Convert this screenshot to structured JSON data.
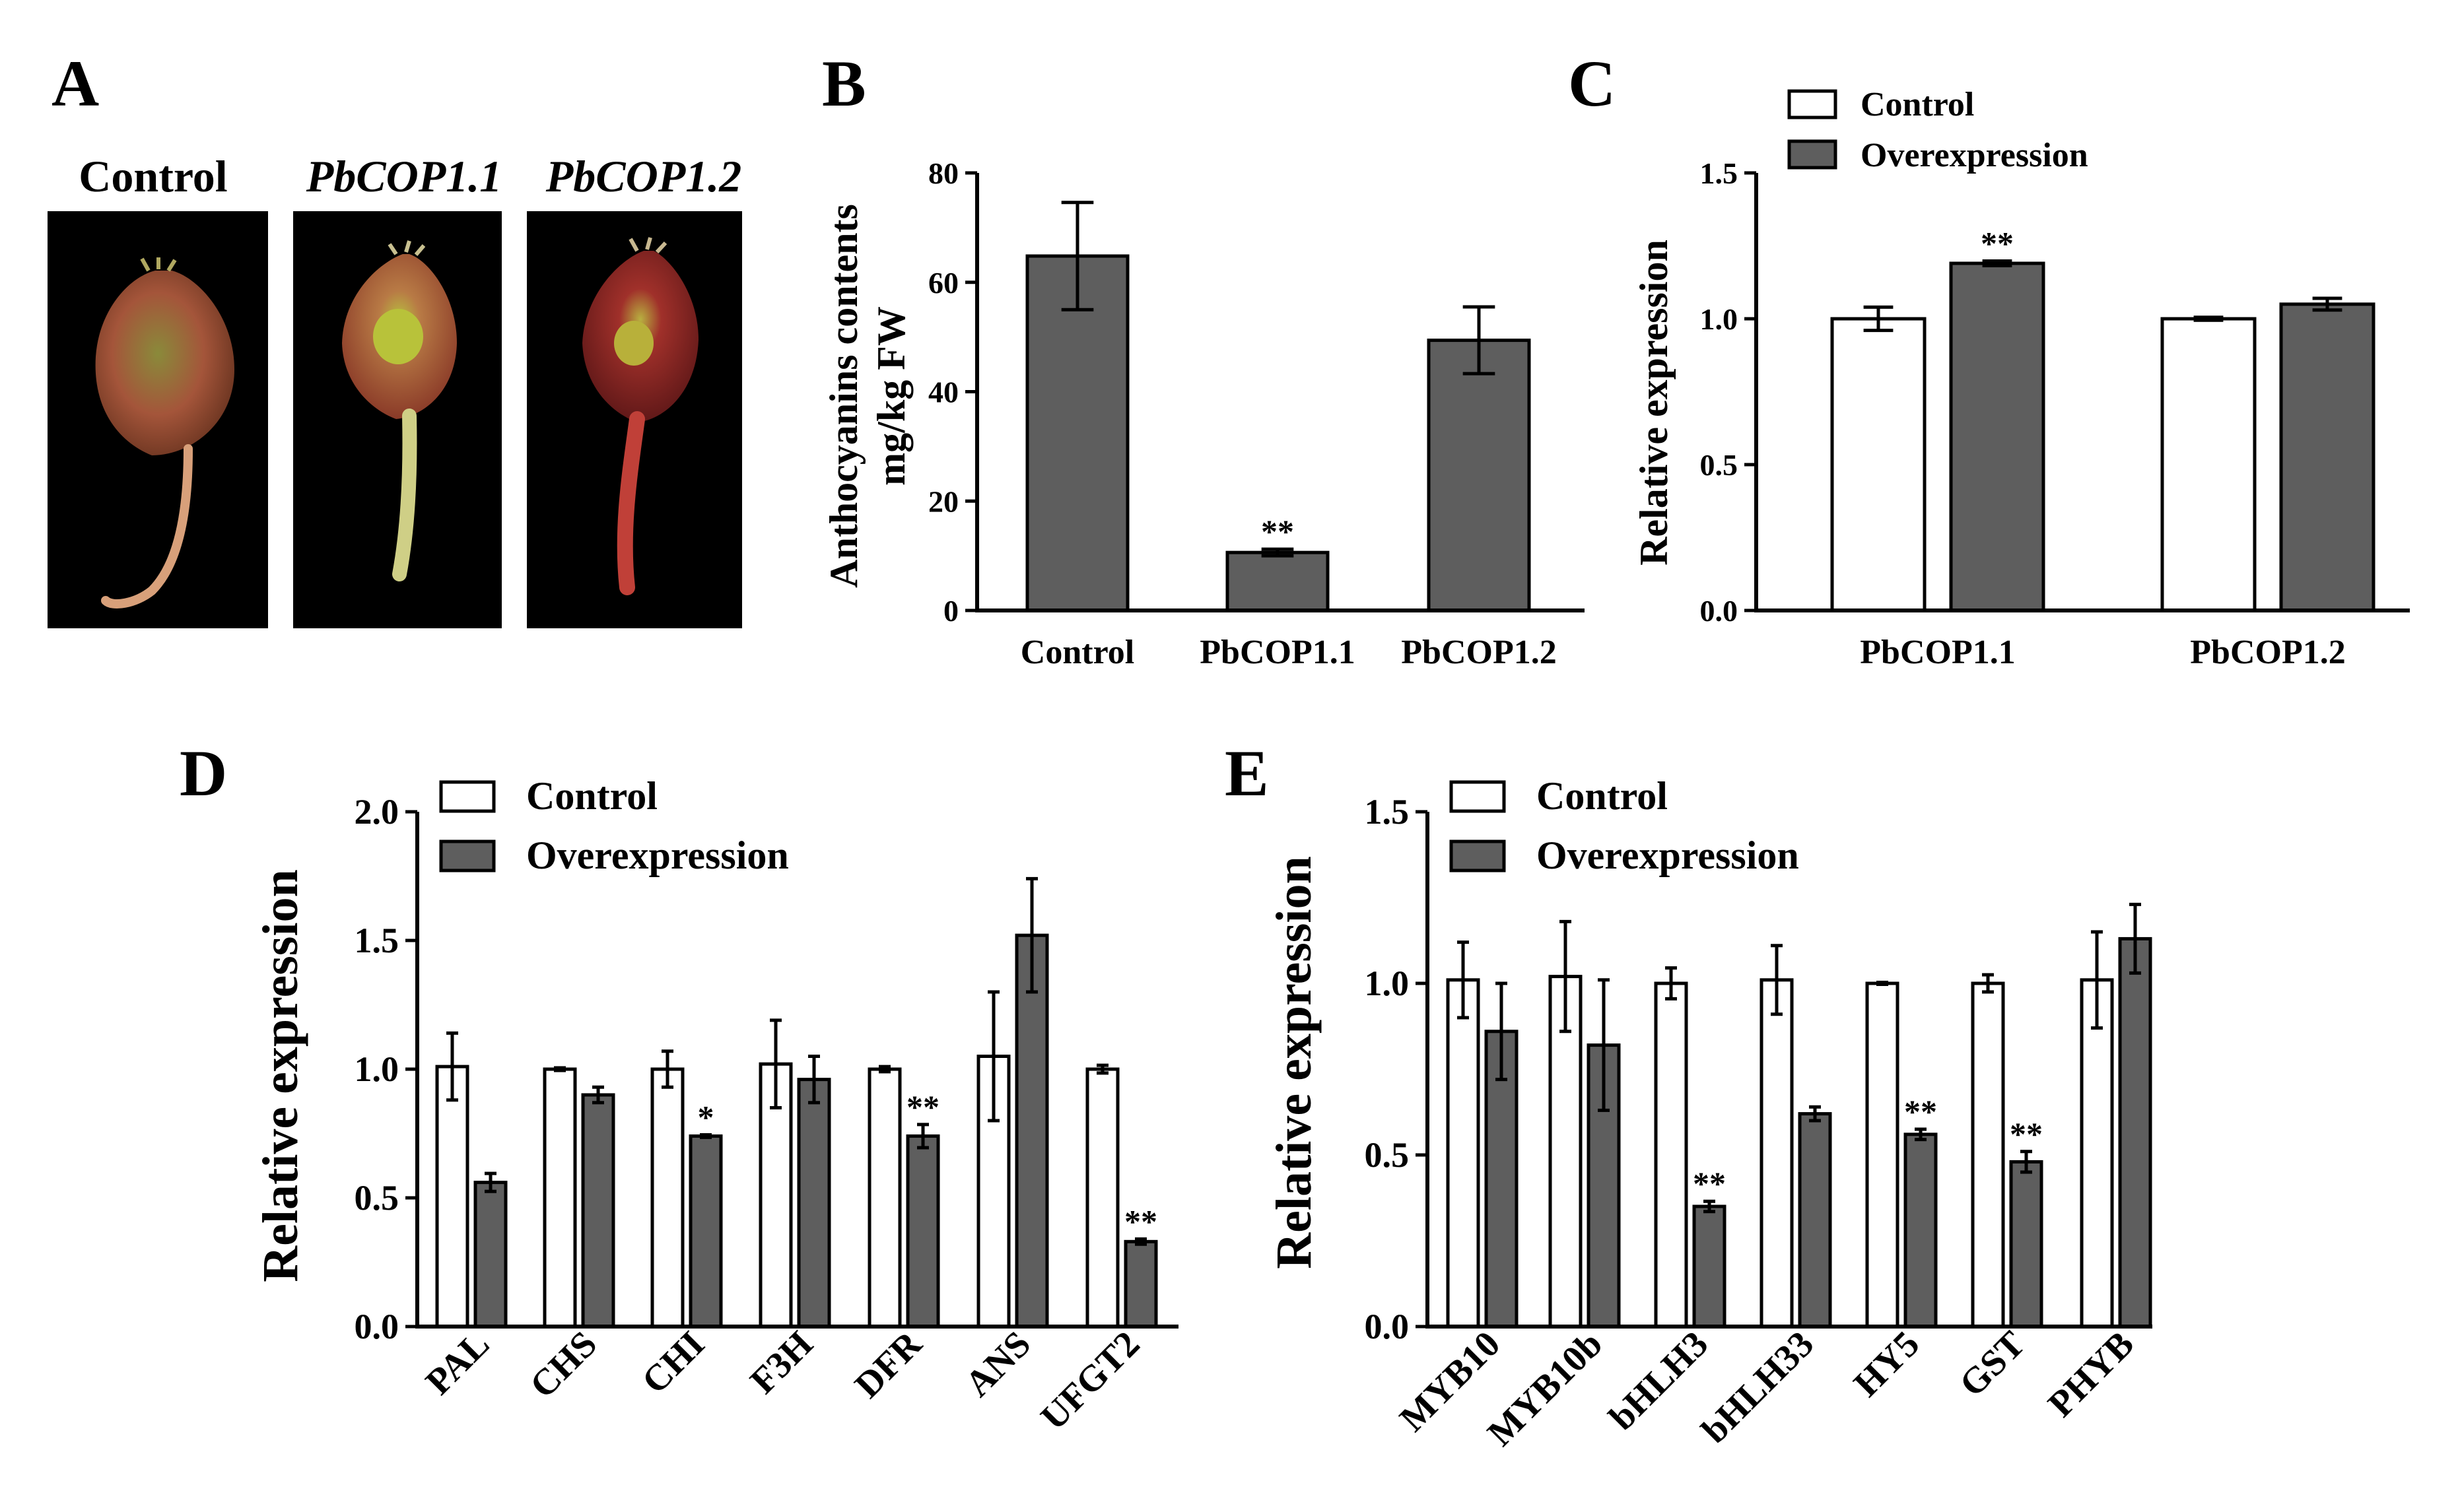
{
  "colors": {
    "control": "#ffffff",
    "overexpression": "#5e5e5e",
    "axis": "#000000",
    "photo_bg": "#000000"
  },
  "panel_A": {
    "letter": "A",
    "labels": [
      "Control",
      "PbCOP1.1",
      "PbCOP1.2"
    ]
  },
  "chart_data": [
    {
      "panel": "B",
      "type": "bar",
      "categories": [
        "Control",
        "PbCOP1.1",
        "PbCOP1.2"
      ],
      "values": [
        64.8,
        10.6,
        49.4
      ],
      "errors": [
        9.8,
        0.6,
        6.1
      ],
      "significance": [
        "",
        "**",
        ""
      ],
      "ylabel_line1": "Anthocyanins contents",
      "ylabel_line2": "mg/kg FW",
      "ylim": [
        0,
        80
      ],
      "yticks": [
        "0",
        "20",
        "40",
        "60",
        "80"
      ]
    },
    {
      "panel": "C",
      "type": "bar",
      "categories": [
        "PbCOP1.1",
        "PbCOP1.2"
      ],
      "series": [
        {
          "name": "Control",
          "values": [
            1.0,
            1.0
          ],
          "errors": [
            0.04,
            0.005
          ],
          "significance": [
            "",
            ""
          ]
        },
        {
          "name": "Overexpression",
          "values": [
            1.19,
            1.05
          ],
          "errors": [
            0.008,
            0.02
          ],
          "significance": [
            "**",
            ""
          ]
        }
      ],
      "ylabel": "Relative expression",
      "ylim": [
        0,
        1.5
      ],
      "yticks": [
        "0.0",
        "0.5",
        "1.0",
        "1.5"
      ],
      "legend": [
        "Control",
        "Overexpression"
      ]
    },
    {
      "panel": "D",
      "type": "bar",
      "categories": [
        "PAL",
        "CHS",
        "CHI",
        "F3H",
        "DFR",
        "ANS",
        "UFGT2"
      ],
      "series": [
        {
          "name": "Control",
          "values": [
            1.01,
            1.0,
            1.0,
            1.02,
            1.0,
            1.05,
            1.0
          ],
          "errors": [
            0.13,
            0.005,
            0.07,
            0.17,
            0.01,
            0.25,
            0.015
          ],
          "significance": [
            "",
            "",
            "",
            "",
            "",
            "",
            ""
          ]
        },
        {
          "name": "Overexpression",
          "values": [
            0.56,
            0.9,
            0.74,
            0.96,
            0.74,
            1.52,
            0.33
          ],
          "errors": [
            0.035,
            0.03,
            0.005,
            0.09,
            0.045,
            0.22,
            0.01
          ],
          "significance": [
            "",
            "",
            "*",
            "",
            "**",
            "",
            "**"
          ]
        }
      ],
      "ylabel": "Relative expression",
      "ylim": [
        0,
        2.0
      ],
      "yticks": [
        "0.0",
        "0.5",
        "1.0",
        "1.5",
        "2.0"
      ],
      "legend": [
        "Control",
        "Overexpression"
      ]
    },
    {
      "panel": "E",
      "type": "bar",
      "categories": [
        "MYB10",
        "MYB10b",
        "bHLH3",
        "bHLH33",
        "HY5",
        "GST",
        "PHYB"
      ],
      "series": [
        {
          "name": "Control",
          "values": [
            1.01,
            1.02,
            1.0,
            1.01,
            1.0,
            1.0,
            1.01
          ],
          "errors": [
            0.11,
            0.16,
            0.045,
            0.1,
            0.003,
            0.025,
            0.14
          ],
          "significance": [
            "",
            "",
            "",
            "",
            "",
            "",
            ""
          ]
        },
        {
          "name": "Overexpression",
          "values": [
            0.86,
            0.82,
            0.35,
            0.62,
            0.56,
            0.48,
            1.13
          ],
          "errors": [
            0.14,
            0.19,
            0.015,
            0.02,
            0.015,
            0.03,
            0.1
          ],
          "significance": [
            "",
            "",
            "**",
            "",
            "**",
            "**",
            ""
          ]
        }
      ],
      "ylabel": "Relative expression",
      "ylim": [
        0,
        1.5
      ],
      "yticks": [
        "0.0",
        "0.5",
        "1.0",
        "1.5"
      ],
      "legend": [
        "Control",
        "Overexpression"
      ]
    }
  ]
}
